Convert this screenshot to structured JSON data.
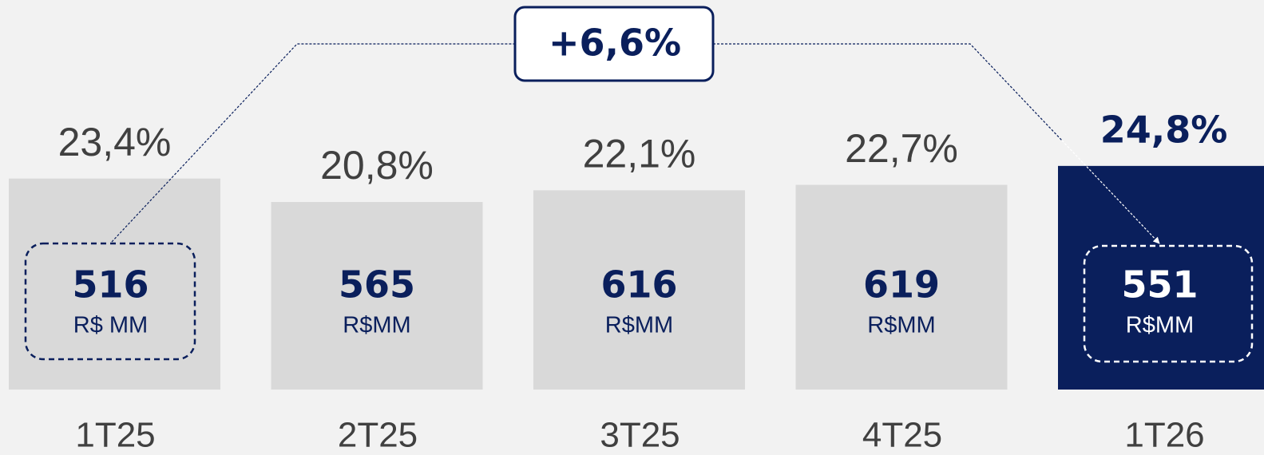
{
  "chart_data": {
    "type": "bar",
    "categories": [
      "1T25",
      "2T25",
      "3T25",
      "4T25",
      "1T26"
    ],
    "values": [
      23.4,
      20.8,
      22.1,
      22.7,
      24.8
    ],
    "value_labels": [
      "23,4%",
      "20,8%",
      "22,1%",
      "22,7%",
      "24,8%"
    ],
    "amounts": [
      516,
      565,
      616,
      619,
      551
    ],
    "amount_units": [
      "R$ MM",
      "R$MM",
      "R$MM",
      "R$MM",
      "R$MM"
    ],
    "colors": [
      "#d9d9d9",
      "#d9d9d9",
      "#d9d9d9",
      "#d9d9d9",
      "#0a1f5c"
    ],
    "ylim": [
      0,
      43.2
    ],
    "annotation": "+6,6%"
  }
}
